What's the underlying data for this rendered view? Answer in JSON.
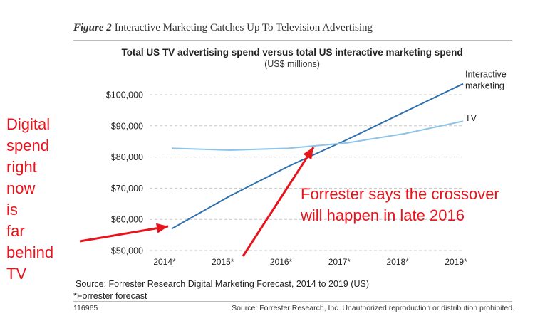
{
  "figure": {
    "label": "Figure 2",
    "caption": "Interactive Marketing Catches Up To Television Advertising"
  },
  "chart_data": {
    "type": "line",
    "title": "Total US TV advertising spend versus total US interactive marketing spend",
    "subtitle": "(US$ millions)",
    "categories": [
      "2014*",
      "2015*",
      "2016*",
      "2017*",
      "2018*",
      "2019*"
    ],
    "x": [
      2014,
      2015,
      2016,
      2017,
      2018,
      2019
    ],
    "yticks": [
      "$50,000",
      "$60,000",
      "$70,000",
      "$80,000",
      "$90,000",
      "$100,000"
    ],
    "ytick_values": [
      50000,
      60000,
      70000,
      80000,
      90000,
      100000
    ],
    "ylim": [
      50000,
      100000
    ],
    "grid": true,
    "series": [
      {
        "name": "Interactive marketing",
        "label_lines": [
          "Interactive",
          "marketing"
        ],
        "color": "#2e6fae",
        "values": [
          57000,
          67500,
          77000,
          85500,
          94500,
          103500
        ]
      },
      {
        "name": "TV",
        "label_lines": [
          "TV"
        ],
        "color": "#8ec4e8",
        "values": [
          82800,
          82200,
          82800,
          84500,
          87500,
          91500
        ]
      }
    ]
  },
  "source": "Source: Forrester Research Digital Marketing Forecast, 2014 to 2019 (US)",
  "forecast_note": "*Forrester forecast",
  "footer": {
    "page_id": "116965",
    "rights": "Source: Forrester Research, Inc. Unauthorized reproduction or distribution prohibited."
  },
  "annotations": {
    "left": "Digital\nspend\nright\nnow\nis\nfar\nbehind\nTV",
    "middle": "Forrester says the crossover will happen in late 2016",
    "color": "#e8141c"
  }
}
